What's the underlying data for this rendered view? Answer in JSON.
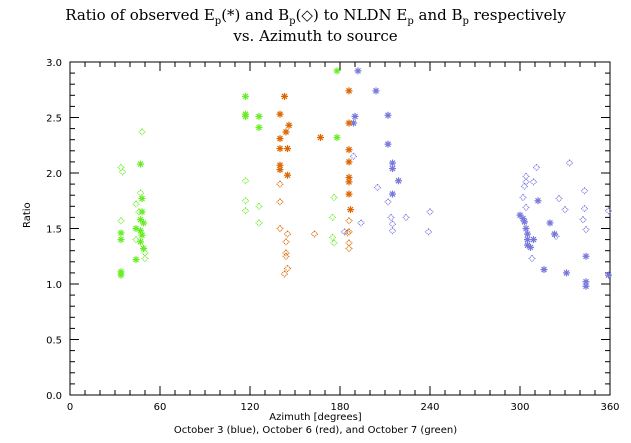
{
  "chart_data": {
    "type": "scatter",
    "title": "Ratio of observed Ep(*) and Bp(◇) to NLDN Ep and Bp respectively vs. Azimuth to source",
    "title_line1_parts": [
      "Ratio of observed E",
      "p",
      "(*) and B",
      "p",
      "(◇) to NLDN E",
      "p",
      " and B",
      "p",
      " respectively"
    ],
    "title_line2": "vs.  Azimuth to source",
    "xlabel": "Azimuth [degrees]",
    "xlabel2": "October 3 (blue), October 6 (red), and October 7 (green)",
    "ylabel": "Ratio",
    "xlim": [
      0,
      360
    ],
    "ylim": [
      0,
      3.0
    ],
    "x_ticks": [
      0,
      60,
      120,
      180,
      240,
      300,
      360
    ],
    "x_tick_labels": [
      "0",
      "60",
      "120",
      "180",
      "240",
      "300",
      "360"
    ],
    "y_ticks": [
      0.0,
      0.5,
      1.0,
      1.5,
      2.0,
      2.5,
      3.0
    ],
    "y_tick_labels": [
      "0.0",
      "0.5",
      "1.0",
      "1.5",
      "2.0",
      "2.5",
      "3.0"
    ],
    "grid": false,
    "legend": "none (encoded in x-axis subtitle)",
    "markers": {
      "Ep": "asterisk",
      "Bp": "diamond"
    },
    "series": [
      {
        "name": "October 3 (blue)",
        "color": "#7777dd",
        "Ep": [
          [
            192,
            2.92
          ],
          [
            204,
            2.74
          ],
          [
            190,
            2.51
          ],
          [
            189,
            2.45
          ],
          [
            212,
            2.52
          ],
          [
            212,
            2.26
          ],
          [
            215,
            2.09
          ],
          [
            215,
            2.04
          ],
          [
            219,
            1.93
          ],
          [
            215,
            1.81
          ],
          [
            312,
            1.75
          ],
          [
            300,
            1.62
          ],
          [
            302,
            1.59
          ],
          [
            303,
            1.56
          ],
          [
            304,
            1.5
          ],
          [
            305,
            1.45
          ],
          [
            305,
            1.4
          ],
          [
            305,
            1.35
          ],
          [
            307,
            1.33
          ],
          [
            309,
            1.4
          ],
          [
            320,
            1.55
          ],
          [
            323,
            1.45
          ],
          [
            316,
            1.13
          ],
          [
            331,
            1.1
          ],
          [
            344,
            1.25
          ],
          [
            344,
            1.02
          ],
          [
            344,
            0.98
          ],
          [
            363,
            1.08
          ]
        ],
        "Bp": [
          [
            189,
            2.15
          ],
          [
            205,
            1.87
          ],
          [
            212,
            1.74
          ],
          [
            215,
            1.54
          ],
          [
            224,
            1.6
          ],
          [
            194,
            1.55
          ],
          [
            183,
            1.47
          ],
          [
            215,
            1.48
          ],
          [
            214,
            1.6
          ],
          [
            240,
            1.65
          ],
          [
            239,
            1.47
          ],
          [
            311,
            2.05
          ],
          [
            304,
            1.97
          ],
          [
            304,
            1.92
          ],
          [
            309,
            1.92
          ],
          [
            303,
            1.88
          ],
          [
            326,
            1.77
          ],
          [
            343,
            1.84
          ],
          [
            302,
            1.78
          ],
          [
            304,
            1.69
          ],
          [
            343,
            1.68
          ],
          [
            342,
            1.58
          ],
          [
            362,
            1.66
          ],
          [
            308,
            1.23
          ],
          [
            324,
            1.43
          ],
          [
            330,
            1.67
          ],
          [
            344,
            1.49
          ],
          [
            333,
            2.09
          ]
        ]
      },
      {
        "name": "October 6 (red)",
        "color": "#dd6600",
        "Ep": [
          [
            143,
            2.69
          ],
          [
            140,
            2.53
          ],
          [
            146,
            2.43
          ],
          [
            144,
            2.37
          ],
          [
            140,
            2.31
          ],
          [
            140,
            2.22
          ],
          [
            145,
            2.22
          ],
          [
            140,
            2.07
          ],
          [
            140,
            2.03
          ],
          [
            145,
            1.98
          ],
          [
            186,
            2.74
          ],
          [
            186,
            2.45
          ],
          [
            186,
            2.21
          ],
          [
            167,
            2.32
          ],
          [
            186,
            2.1
          ],
          [
            186,
            1.96
          ],
          [
            186,
            1.92
          ],
          [
            186,
            1.81
          ],
          [
            187,
            1.67
          ]
        ],
        "Bp": [
          [
            140,
            1.9
          ],
          [
            140,
            1.74
          ],
          [
            140,
            1.5
          ],
          [
            145,
            1.45
          ],
          [
            144,
            1.38
          ],
          [
            144,
            1.28
          ],
          [
            144,
            1.25
          ],
          [
            145,
            1.14
          ],
          [
            143,
            1.09
          ],
          [
            186,
            1.57
          ],
          [
            186,
            1.47
          ],
          [
            186,
            1.37
          ],
          [
            186,
            1.32
          ],
          [
            163,
            1.45
          ],
          [
            185,
            1.46
          ]
        ]
      },
      {
        "name": "October 7 (green)",
        "color": "#66ee22",
        "Ep": [
          [
            34,
            1.46
          ],
          [
            34,
            1.4
          ],
          [
            34,
            1.11
          ],
          [
            34,
            1.08
          ],
          [
            44,
            1.5
          ],
          [
            44,
            1.22
          ],
          [
            47,
            2.08
          ],
          [
            48,
            1.77
          ],
          [
            48,
            1.65
          ],
          [
            47,
            1.58
          ],
          [
            49,
            1.55
          ],
          [
            47,
            1.48
          ],
          [
            48,
            1.44
          ],
          [
            47,
            1.38
          ],
          [
            49,
            1.32
          ],
          [
            117,
            2.69
          ],
          [
            117,
            2.53
          ],
          [
            117,
            2.51
          ],
          [
            126,
            2.51
          ],
          [
            126,
            2.41
          ],
          [
            178,
            2.92
          ],
          [
            178,
            2.32
          ]
        ],
        "Bp": [
          [
            34,
            2.05
          ],
          [
            35,
            2.01
          ],
          [
            34,
            1.57
          ],
          [
            44,
            1.72
          ],
          [
            44,
            1.4
          ],
          [
            48,
            2.37
          ],
          [
            47,
            1.82
          ],
          [
            46,
            1.65
          ],
          [
            50,
            1.28
          ],
          [
            50,
            1.23
          ],
          [
            117,
            1.93
          ],
          [
            117,
            1.75
          ],
          [
            117,
            1.66
          ],
          [
            126,
            1.7
          ],
          [
            126,
            1.55
          ],
          [
            176,
            1.78
          ],
          [
            175,
            1.6
          ],
          [
            175,
            1.42
          ],
          [
            176,
            1.37
          ]
        ]
      }
    ]
  }
}
